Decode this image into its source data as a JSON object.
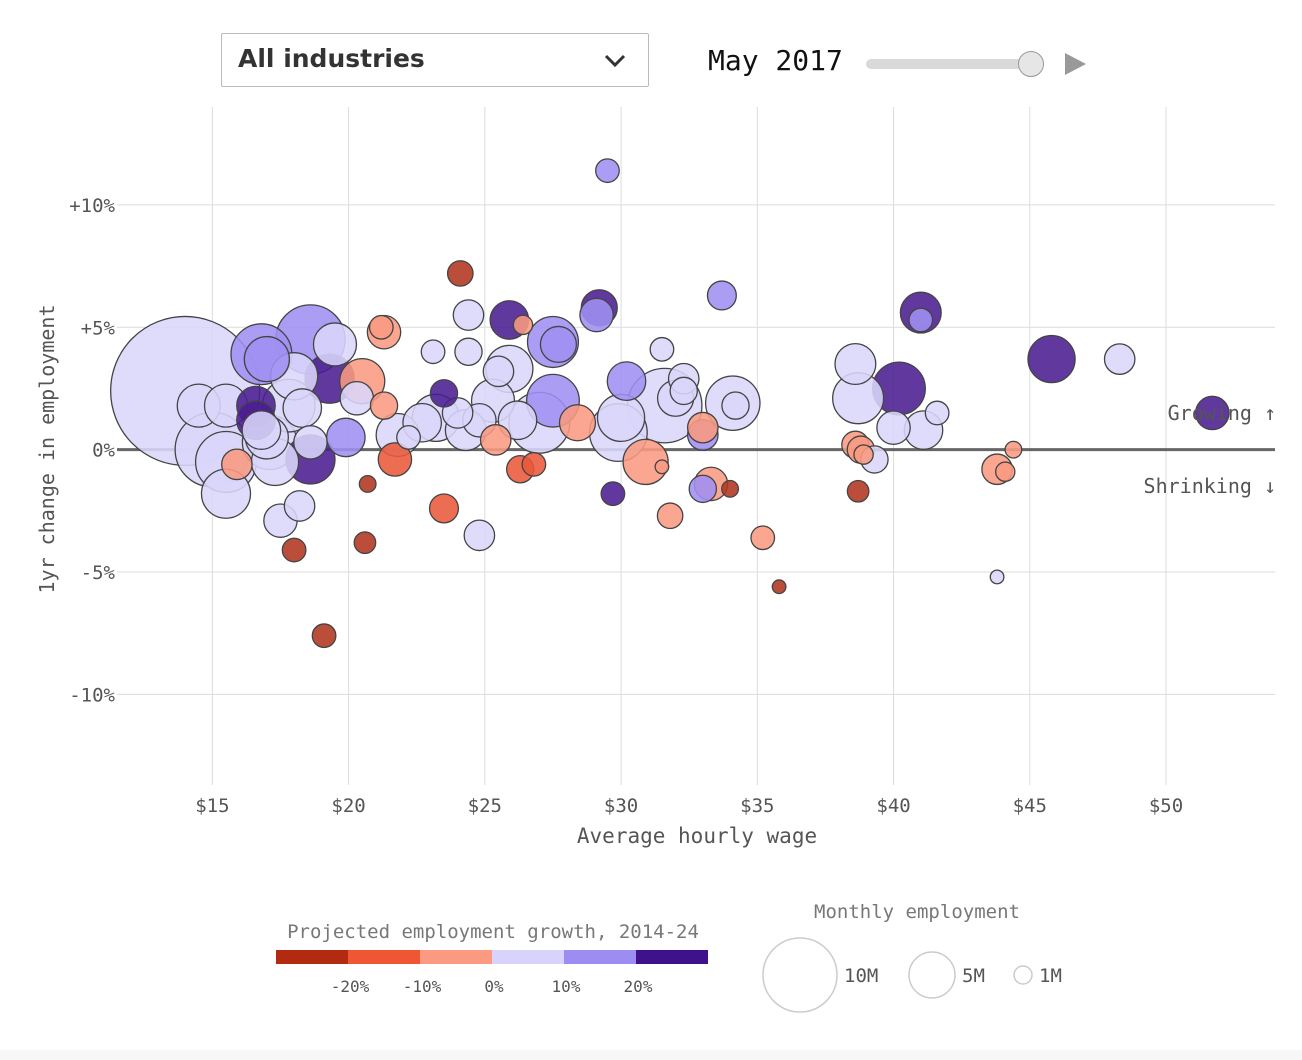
{
  "controls": {
    "industry_select": {
      "value": "All industries"
    },
    "date_label": "May 2017",
    "slider_value": 1.0
  },
  "chart_data": {
    "type": "scatter",
    "xlabel": "Average hourly wage",
    "ylabel": "1yr change in employment",
    "xlim": [
      11.5,
      54
    ],
    "ylim": [
      -13.7,
      14
    ],
    "x_ticks": [
      15,
      20,
      25,
      30,
      35,
      40,
      45,
      50
    ],
    "x_tick_labels": [
      "$15",
      "$20",
      "$25",
      "$30",
      "$35",
      "$40",
      "$45",
      "$50"
    ],
    "y_ticks": [
      10,
      5,
      0,
      -5,
      -10
    ],
    "y_tick_labels": [
      "+10%",
      "+5%",
      "0%",
      "-5%",
      "-10%"
    ],
    "grid": true,
    "annotations": {
      "growing": "Growing ↑",
      "shrinking": "Shrinking ↓"
    },
    "color_legend": {
      "title": "Projected employment growth, 2014-24",
      "colors": [
        "#b22a10",
        "#ee5634",
        "#fb9a80",
        "#d7d3fa",
        "#9d8cf2",
        "#3f128c"
      ],
      "labels": [
        "-20%",
        "-10%",
        "0%",
        "10%",
        "20%"
      ]
    },
    "size_legend": {
      "title": "Monthly employment",
      "entries": [
        {
          "label": "10M",
          "value": 10
        },
        {
          "label": "5M",
          "value": 5
        },
        {
          "label": "1M",
          "value": 1
        }
      ]
    },
    "size_unit": "millions",
    "color_key": {
      "dr": "#b0361f",
      "r": "#e9593a",
      "lr": "#f99a81",
      "lv": "#d9d6fb",
      "v": "#9f90f2",
      "dv": "#4b1e91"
    },
    "points": [
      {
        "x": 14.0,
        "y": 2.4,
        "size": 12,
        "c": "lv"
      },
      {
        "x": 15.0,
        "y": 0.0,
        "size": 3.0,
        "c": "lv"
      },
      {
        "x": 14.5,
        "y": 1.8,
        "size": 1.0,
        "c": "lv"
      },
      {
        "x": 15.5,
        "y": 1.8,
        "size": 1.0,
        "c": "lv"
      },
      {
        "x": 15.5,
        "y": -0.5,
        "size": 2.0,
        "c": "lv"
      },
      {
        "x": 15.5,
        "y": -1.8,
        "size": 1.3,
        "c": "lv"
      },
      {
        "x": 15.9,
        "y": -0.6,
        "size": 0.5,
        "c": "lr"
      },
      {
        "x": 16.8,
        "y": 3.9,
        "size": 2.0,
        "c": "v"
      },
      {
        "x": 17.0,
        "y": 3.7,
        "size": 1.1,
        "c": "v"
      },
      {
        "x": 16.6,
        "y": 1.8,
        "size": 0.8,
        "c": "dv"
      },
      {
        "x": 16.6,
        "y": 1.2,
        "size": 0.8,
        "c": "dv"
      },
      {
        "x": 16.8,
        "y": 0.8,
        "size": 0.8,
        "c": "lv"
      },
      {
        "x": 17.1,
        "y": 0.3,
        "size": 1.6,
        "c": "lv"
      },
      {
        "x": 17.0,
        "y": 0.5,
        "size": 1.0,
        "c": "lv"
      },
      {
        "x": 17.3,
        "y": -0.5,
        "size": 1.2,
        "c": "lv"
      },
      {
        "x": 17.8,
        "y": 1.8,
        "size": 1.5,
        "c": "lv"
      },
      {
        "x": 18.0,
        "y": 3.0,
        "size": 1.2,
        "c": "lv"
      },
      {
        "x": 18.3,
        "y": 1.7,
        "size": 0.8,
        "c": "lv"
      },
      {
        "x": 18.6,
        "y": 4.5,
        "size": 2.6,
        "c": "v"
      },
      {
        "x": 18.6,
        "y": -0.4,
        "size": 1.3,
        "c": "dv"
      },
      {
        "x": 18.6,
        "y": 0.3,
        "size": 0.6,
        "c": "lv"
      },
      {
        "x": 17.5,
        "y": -2.9,
        "size": 0.6,
        "c": "lv"
      },
      {
        "x": 18.2,
        "y": -2.3,
        "size": 0.5,
        "c": "lv"
      },
      {
        "x": 18.0,
        "y": -4.1,
        "size": 0.3,
        "c": "dr"
      },
      {
        "x": 19.1,
        "y": -7.6,
        "size": 0.3,
        "c": "dr"
      },
      {
        "x": 19.3,
        "y": 2.9,
        "size": 1.3,
        "c": "dv"
      },
      {
        "x": 19.5,
        "y": 4.3,
        "size": 1.0,
        "c": "lv"
      },
      {
        "x": 19.9,
        "y": 0.5,
        "size": 0.8,
        "c": "v"
      },
      {
        "x": 20.5,
        "y": 2.8,
        "size": 1.1,
        "c": "lr"
      },
      {
        "x": 20.3,
        "y": 2.1,
        "size": 0.6,
        "c": "lv"
      },
      {
        "x": 21.2,
        "y": 5.0,
        "size": 0.3,
        "c": "lr"
      },
      {
        "x": 21.3,
        "y": 4.8,
        "size": 0.6,
        "c": "lr"
      },
      {
        "x": 21.3,
        "y": 1.8,
        "size": 0.4,
        "c": "lr"
      },
      {
        "x": 20.7,
        "y": -1.4,
        "size": 0.15,
        "c": "dr"
      },
      {
        "x": 20.6,
        "y": -3.8,
        "size": 0.25,
        "c": "dr"
      },
      {
        "x": 21.7,
        "y": -0.4,
        "size": 0.6,
        "c": "r"
      },
      {
        "x": 21.8,
        "y": 0.6,
        "size": 1.0,
        "c": "lv"
      },
      {
        "x": 22.2,
        "y": 0.5,
        "size": 0.3,
        "c": "lv"
      },
      {
        "x": 22.7,
        "y": 1.1,
        "size": 0.8,
        "c": "lv"
      },
      {
        "x": 23.1,
        "y": 4.0,
        "size": 0.3,
        "c": "lv"
      },
      {
        "x": 23.2,
        "y": 1.3,
        "size": 1.2,
        "c": "lv"
      },
      {
        "x": 23.5,
        "y": 2.3,
        "size": 0.4,
        "c": "dv"
      },
      {
        "x": 23.5,
        "y": -2.4,
        "size": 0.45,
        "c": "r"
      },
      {
        "x": 24.1,
        "y": 7.2,
        "size": 0.35,
        "c": "dr"
      },
      {
        "x": 24.0,
        "y": 1.5,
        "size": 0.5,
        "c": "lv"
      },
      {
        "x": 24.3,
        "y": 0.8,
        "size": 0.9,
        "c": "lv"
      },
      {
        "x": 24.4,
        "y": 5.5,
        "size": 0.5,
        "c": "lv"
      },
      {
        "x": 24.4,
        "y": 4.0,
        "size": 0.4,
        "c": "lv"
      },
      {
        "x": 24.8,
        "y": 1.2,
        "size": 0.6,
        "c": "lv"
      },
      {
        "x": 24.8,
        "y": -3.5,
        "size": 0.5,
        "c": "lv"
      },
      {
        "x": 25.4,
        "y": 0.4,
        "size": 0.5,
        "c": "lr"
      },
      {
        "x": 25.3,
        "y": 2.0,
        "size": 1.0,
        "c": "lv"
      },
      {
        "x": 25.5,
        "y": 3.2,
        "size": 0.5,
        "c": "lv"
      },
      {
        "x": 25.9,
        "y": 5.3,
        "size": 0.8,
        "c": "dv"
      },
      {
        "x": 25.9,
        "y": 3.3,
        "size": 1.2,
        "c": "lv"
      },
      {
        "x": 26.2,
        "y": 1.2,
        "size": 0.8,
        "c": "lv"
      },
      {
        "x": 26.4,
        "y": 5.1,
        "size": 0.2,
        "c": "lr"
      },
      {
        "x": 26.3,
        "y": -0.8,
        "size": 0.4,
        "c": "r"
      },
      {
        "x": 26.8,
        "y": -0.6,
        "size": 0.3,
        "c": "r"
      },
      {
        "x": 27.0,
        "y": 1.1,
        "size": 2.0,
        "c": "lv"
      },
      {
        "x": 27.5,
        "y": 4.4,
        "size": 1.4,
        "c": "v"
      },
      {
        "x": 27.7,
        "y": 4.3,
        "size": 0.7,
        "c": "v"
      },
      {
        "x": 27.5,
        "y": 2.0,
        "size": 1.5,
        "c": "v"
      },
      {
        "x": 28.4,
        "y": 1.1,
        "size": 0.7,
        "c": "lr"
      },
      {
        "x": 29.1,
        "y": 5.5,
        "size": 0.6,
        "c": "v"
      },
      {
        "x": 29.2,
        "y": 5.8,
        "size": 0.7,
        "c": "dv"
      },
      {
        "x": 29.5,
        "y": 11.4,
        "size": 0.3,
        "c": "v"
      },
      {
        "x": 29.7,
        "y": -1.8,
        "size": 0.3,
        "c": "dv"
      },
      {
        "x": 29.9,
        "y": 0.7,
        "size": 1.8,
        "c": "lv"
      },
      {
        "x": 30.0,
        "y": 1.3,
        "size": 1.2,
        "c": "lv"
      },
      {
        "x": 30.2,
        "y": 2.8,
        "size": 0.8,
        "c": "v"
      },
      {
        "x": 30.9,
        "y": -0.5,
        "size": 1.1,
        "c": "lr"
      },
      {
        "x": 31.5,
        "y": -0.7,
        "size": 0.1,
        "c": "lr"
      },
      {
        "x": 31.5,
        "y": 4.1,
        "size": 0.3,
        "c": "lv"
      },
      {
        "x": 31.6,
        "y": 1.8,
        "size": 3.0,
        "c": "lv"
      },
      {
        "x": 31.8,
        "y": -2.7,
        "size": 0.35,
        "c": "lr"
      },
      {
        "x": 32.0,
        "y": 2.1,
        "size": 0.7,
        "c": "lv"
      },
      {
        "x": 32.3,
        "y": 2.9,
        "size": 0.5,
        "c": "lv"
      },
      {
        "x": 32.3,
        "y": 2.4,
        "size": 0.4,
        "c": "lv"
      },
      {
        "x": 33.0,
        "y": 0.6,
        "size": 0.5,
        "c": "v"
      },
      {
        "x": 33.0,
        "y": 0.9,
        "size": 0.5,
        "c": "lr"
      },
      {
        "x": 33.0,
        "y": -1.6,
        "size": 0.4,
        "c": "v"
      },
      {
        "x": 33.3,
        "y": -1.4,
        "size": 0.6,
        "c": "lr"
      },
      {
        "x": 33.7,
        "y": 6.3,
        "size": 0.45,
        "c": "v"
      },
      {
        "x": 34.1,
        "y": 1.9,
        "size": 1.6,
        "c": "lv"
      },
      {
        "x": 34.2,
        "y": 1.8,
        "size": 0.4,
        "c": "lv"
      },
      {
        "x": 34.0,
        "y": -1.6,
        "size": 0.15,
        "c": "dr"
      },
      {
        "x": 35.2,
        "y": -3.6,
        "size": 0.3,
        "c": "lr"
      },
      {
        "x": 35.8,
        "y": -5.6,
        "size": 0.1,
        "c": "dr"
      },
      {
        "x": 38.6,
        "y": 3.5,
        "size": 0.9,
        "c": "lv"
      },
      {
        "x": 38.7,
        "y": 2.1,
        "size": 1.4,
        "c": "lv"
      },
      {
        "x": 38.6,
        "y": 0.2,
        "size": 0.4,
        "c": "lr"
      },
      {
        "x": 38.8,
        "y": 0.0,
        "size": 0.4,
        "c": "lr"
      },
      {
        "x": 38.9,
        "y": -0.2,
        "size": 0.2,
        "c": "lr"
      },
      {
        "x": 38.7,
        "y": -1.7,
        "size": 0.25,
        "c": "dr"
      },
      {
        "x": 39.3,
        "y": -0.4,
        "size": 0.4,
        "c": "lv"
      },
      {
        "x": 40.2,
        "y": 2.5,
        "size": 1.5,
        "c": "dv"
      },
      {
        "x": 40.0,
        "y": 0.9,
        "size": 0.6,
        "c": "lv"
      },
      {
        "x": 41.0,
        "y": 5.6,
        "size": 0.9,
        "c": "dv"
      },
      {
        "x": 41.0,
        "y": 5.3,
        "size": 0.3,
        "c": "v"
      },
      {
        "x": 41.1,
        "y": 0.8,
        "size": 0.8,
        "c": "lv"
      },
      {
        "x": 41.6,
        "y": 1.5,
        "size": 0.3,
        "c": "lv"
      },
      {
        "x": 43.8,
        "y": -0.8,
        "size": 0.5,
        "c": "lr"
      },
      {
        "x": 44.1,
        "y": -0.9,
        "size": 0.2,
        "c": "lr"
      },
      {
        "x": 44.4,
        "y": 0.0,
        "size": 0.15,
        "c": "lr"
      },
      {
        "x": 43.8,
        "y": -5.2,
        "size": 0.1,
        "c": "lv"
      },
      {
        "x": 45.8,
        "y": 3.7,
        "size": 1.2,
        "c": "dv"
      },
      {
        "x": 48.3,
        "y": 3.7,
        "size": 0.5,
        "c": "lv"
      },
      {
        "x": 51.7,
        "y": 1.5,
        "size": 0.6,
        "c": "dv"
      }
    ]
  }
}
